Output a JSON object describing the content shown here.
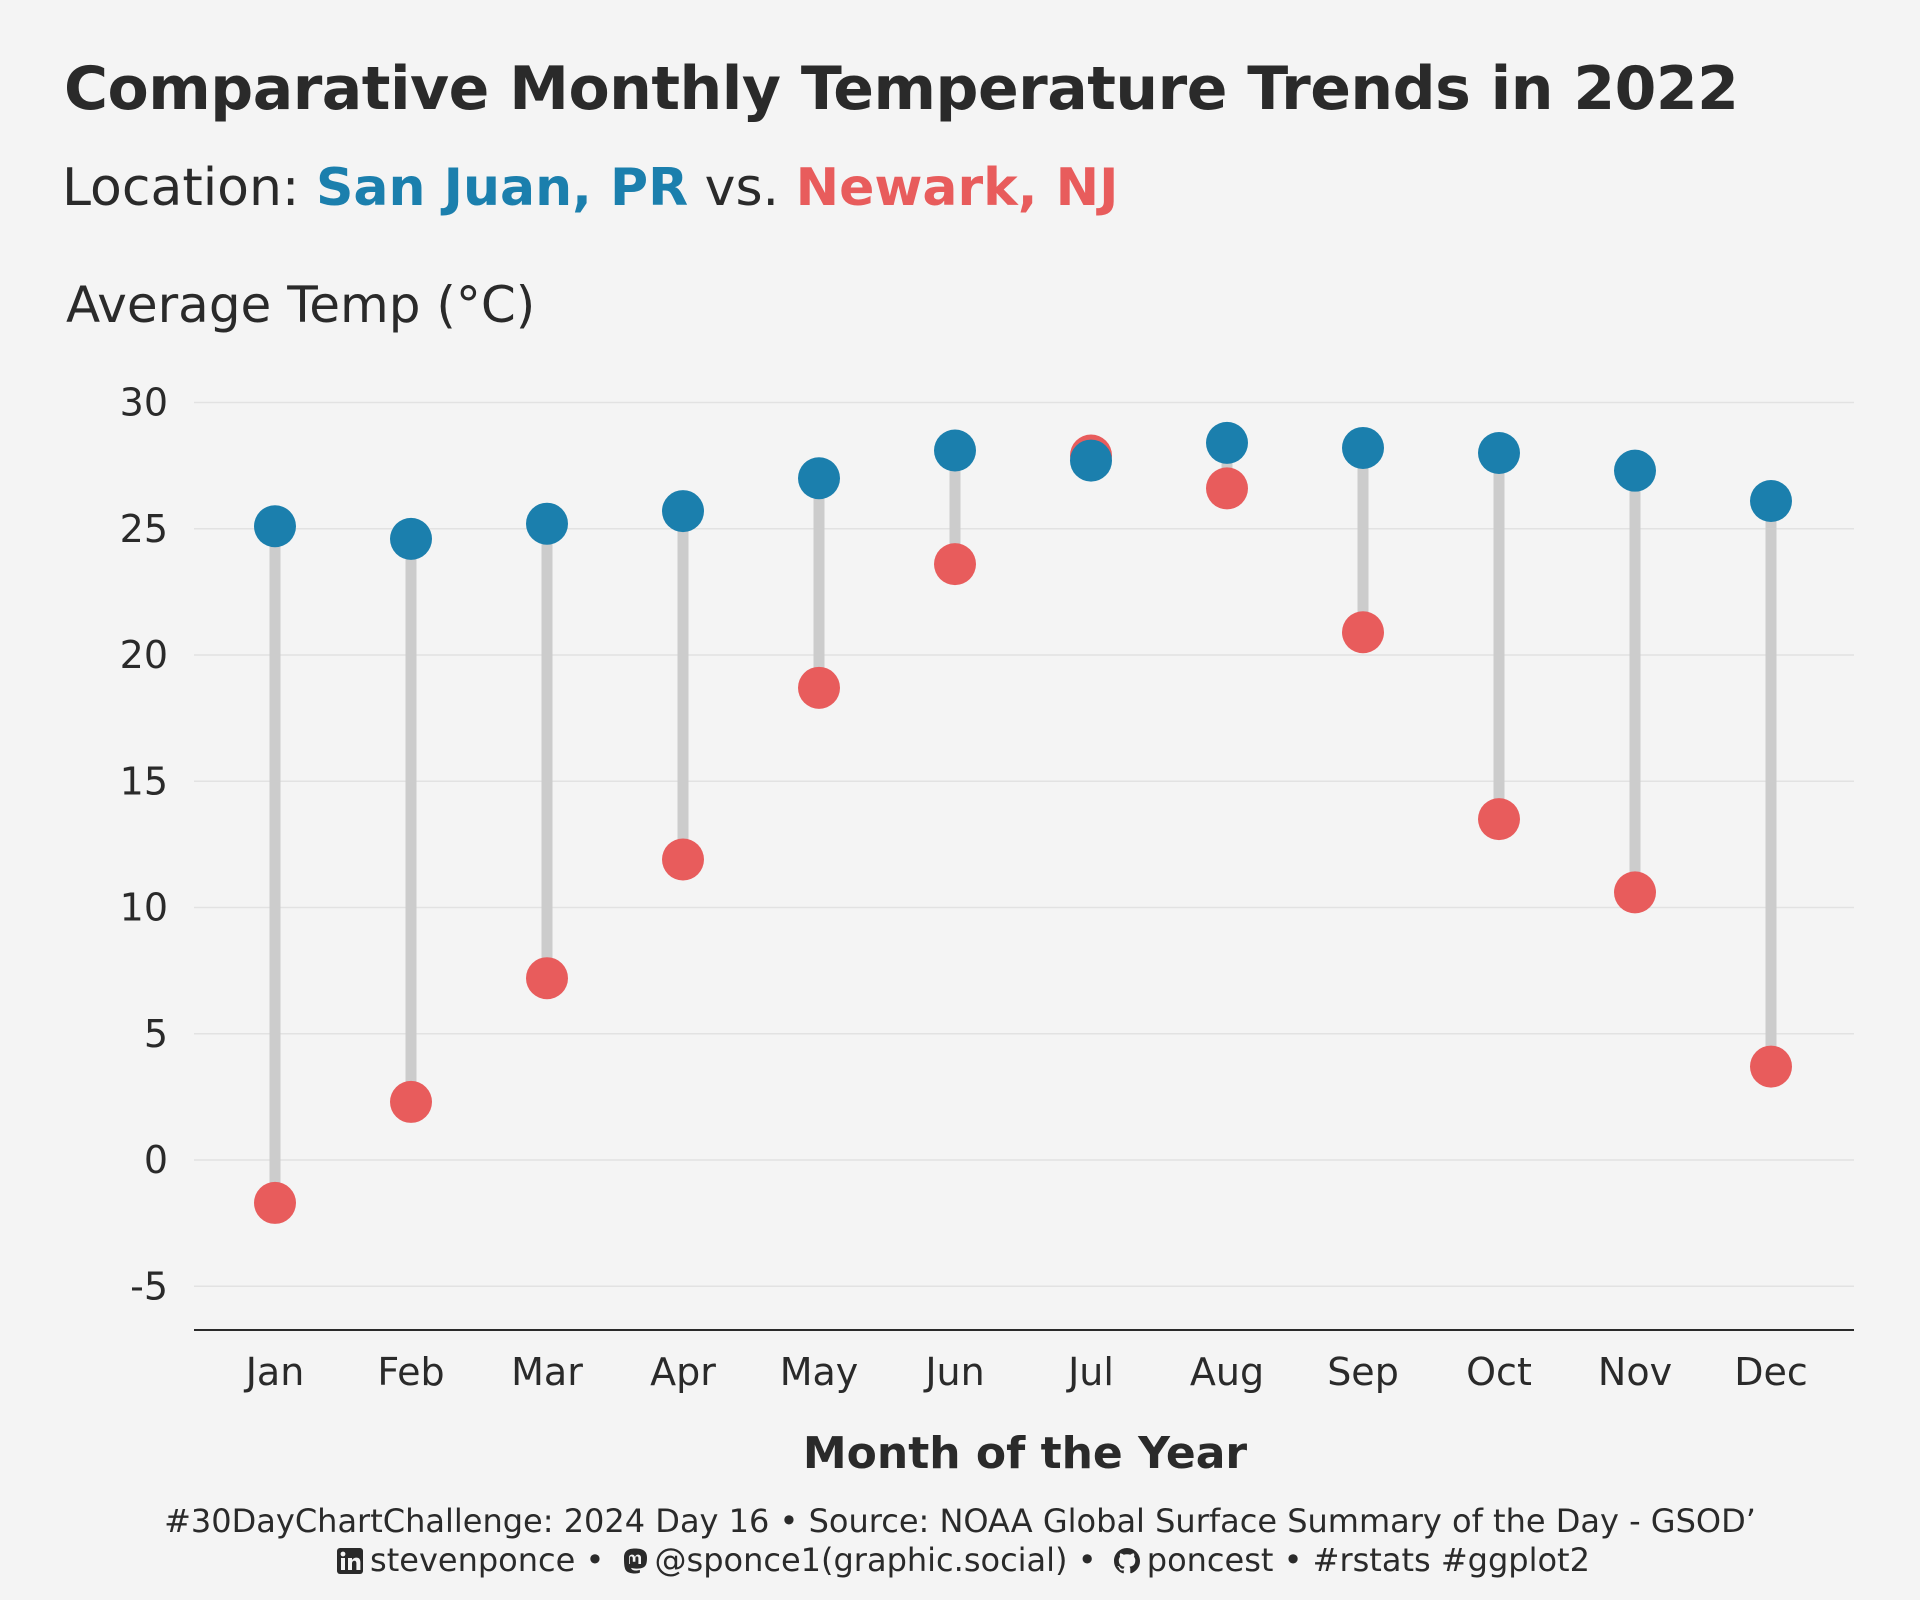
{
  "title": "Comparative Monthly Temperature Trends in 2022",
  "subtitle": {
    "prefix": "Location:",
    "city1": "San Juan, PR",
    "sep": "vs.",
    "city2": "Newark, NJ"
  },
  "caption": {
    "line1": "#30DayChartChallenge: 2024 Day 16 • Source: NOAA Global Surface Summary of the Day - GSOD’",
    "linkedin": "stevenponce",
    "dot1": "•",
    "mastodon": "@sponce1(graphic.social)",
    "dot2": "•",
    "github": "poncest",
    "tags": "• #rstats #ggplot2"
  },
  "colors": {
    "san_juan": "#1b7fad",
    "newark": "#e85c5c",
    "segment": "#cccccc",
    "grid": "#e2e2e2",
    "background": "#f4f4f4"
  },
  "chart_data": {
    "type": "dumbbell",
    "title": "Comparative Monthly Temperature Trends in 2022",
    "xlabel": "Month of the Year",
    "ylabel": "Average Temp (°C)",
    "categories": [
      "Jan",
      "Feb",
      "Mar",
      "Apr",
      "May",
      "Jun",
      "Jul",
      "Aug",
      "Sep",
      "Oct",
      "Nov",
      "Dec"
    ],
    "series": [
      {
        "name": "San Juan, PR",
        "values": [
          25.1,
          24.6,
          25.2,
          25.7,
          27.0,
          28.1,
          27.7,
          28.4,
          28.2,
          28.0,
          27.3,
          26.1
        ]
      },
      {
        "name": "Newark, NJ",
        "values": [
          -1.7,
          2.3,
          7.2,
          11.9,
          18.7,
          23.6,
          27.9,
          26.6,
          20.9,
          13.5,
          10.6,
          3.7
        ]
      }
    ],
    "yticks": [
      -5,
      0,
      5,
      10,
      15,
      20,
      25,
      30
    ],
    "ylim": [
      -6.7,
      30
    ],
    "grid": true,
    "legend": "subtitle"
  }
}
